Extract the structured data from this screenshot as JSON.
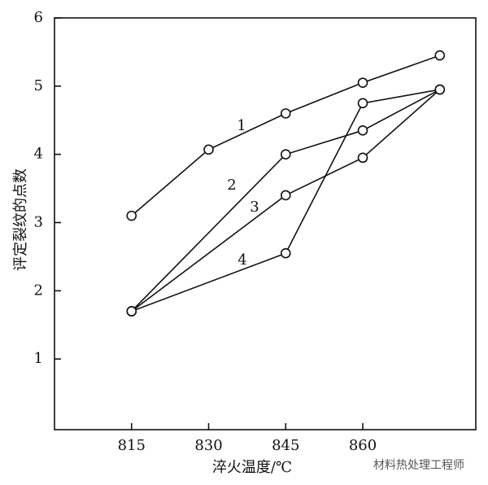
{
  "chart_data": {
    "type": "line",
    "x_label": "淬火温度/℃",
    "y_label": "评定裂纹的点数",
    "xlim": [
      800,
      882
    ],
    "ylim": [
      0,
      6
    ],
    "xticks": [
      815,
      830,
      845,
      860
    ],
    "yticks": [
      1,
      2,
      3,
      4,
      5,
      6
    ],
    "color": "#111111",
    "series": [
      {
        "name": "1",
        "x": [
          815,
          830,
          845,
          860,
          875
        ],
        "values": [
          3.1,
          4.07,
          4.6,
          5.05,
          5.45
        ]
      },
      {
        "name": "2",
        "x": [
          815,
          845,
          860,
          875
        ],
        "values": [
          1.7,
          4.0,
          4.35,
          4.95
        ]
      },
      {
        "name": "3",
        "x": [
          815,
          845,
          860,
          875
        ],
        "values": [
          1.7,
          3.4,
          3.95,
          4.95
        ]
      },
      {
        "name": "4",
        "x": [
          815,
          845,
          860,
          875
        ],
        "values": [
          1.7,
          2.55,
          4.75,
          4.95
        ]
      }
    ],
    "watermark": "材料热处理工程师"
  }
}
